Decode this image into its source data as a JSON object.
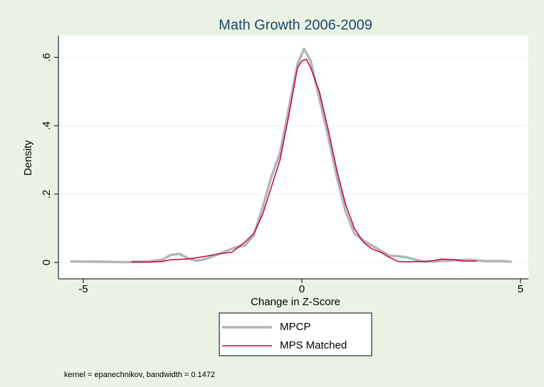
{
  "chart_data": {
    "type": "line",
    "title": "Math Growth 2006-2009",
    "xlabel": "Change in Z-Score",
    "ylabel": "Density",
    "note": "kernel = epanechnikov, bandwidth = 0.1472",
    "xlim": [
      -5.57,
      5.18
    ],
    "ylim": [
      -0.048,
      0.664
    ],
    "xticks": [
      -5,
      0,
      5
    ],
    "yticks": [
      0,
      {
        "value": 0.2,
        "label": ".2"
      },
      {
        "value": 0.4,
        "label": ".4"
      },
      {
        "value": 0.6,
        "label": ".6"
      }
    ],
    "grid": true,
    "legend_position": "bottom",
    "series": [
      {
        "name": "MPCP",
        "color": "#b4b4b4",
        "x": [
          -5.3,
          -4.5,
          -4,
          -3.5,
          -3.2,
          -3.0,
          -2.8,
          -2.6,
          -2.4,
          -2.2,
          -2.0,
          -1.8,
          -1.5,
          -1.3,
          -1.1,
          -0.9,
          -0.7,
          -0.5,
          -0.3,
          -0.1,
          0.05,
          0.2,
          0.4,
          0.6,
          0.8,
          1.0,
          1.2,
          1.4,
          1.6,
          1.8,
          2.0,
          2.2,
          2.4,
          2.6,
          2.8,
          3.0,
          3.4,
          3.8,
          4.2,
          4.6,
          4.8
        ],
        "values": [
          0.003,
          0.002,
          0.001,
          0.003,
          0.008,
          0.022,
          0.025,
          0.012,
          0.005,
          0.01,
          0.02,
          0.03,
          0.045,
          0.05,
          0.08,
          0.16,
          0.25,
          0.32,
          0.45,
          0.58,
          0.625,
          0.59,
          0.48,
          0.37,
          0.25,
          0.15,
          0.085,
          0.065,
          0.05,
          0.035,
          0.02,
          0.018,
          0.015,
          0.008,
          0.002,
          0.003,
          0.006,
          0.008,
          0.004,
          0.004,
          0.002
        ]
      },
      {
        "name": "MPS Matched",
        "color": "#c10534",
        "x": [
          -3.9,
          -3.5,
          -3.2,
          -3.0,
          -2.6,
          -2.2,
          -1.9,
          -1.6,
          -1.3,
          -1.1,
          -0.9,
          -0.7,
          -0.5,
          -0.3,
          -0.1,
          0.0,
          0.1,
          0.2,
          0.4,
          0.6,
          0.8,
          1.0,
          1.2,
          1.4,
          1.6,
          1.8,
          2.0,
          2.2,
          2.4,
          2.8,
          3.0,
          3.2,
          3.5,
          3.7,
          4.0
        ],
        "values": [
          0.002,
          0.001,
          0.003,
          0.008,
          0.01,
          0.018,
          0.025,
          0.03,
          0.06,
          0.085,
          0.14,
          0.22,
          0.3,
          0.43,
          0.57,
          0.59,
          0.595,
          0.57,
          0.5,
          0.39,
          0.27,
          0.17,
          0.1,
          0.06,
          0.04,
          0.03,
          0.015,
          0.003,
          0.002,
          0.003,
          0.005,
          0.01,
          0.008,
          0.004,
          0.004
        ]
      }
    ]
  }
}
